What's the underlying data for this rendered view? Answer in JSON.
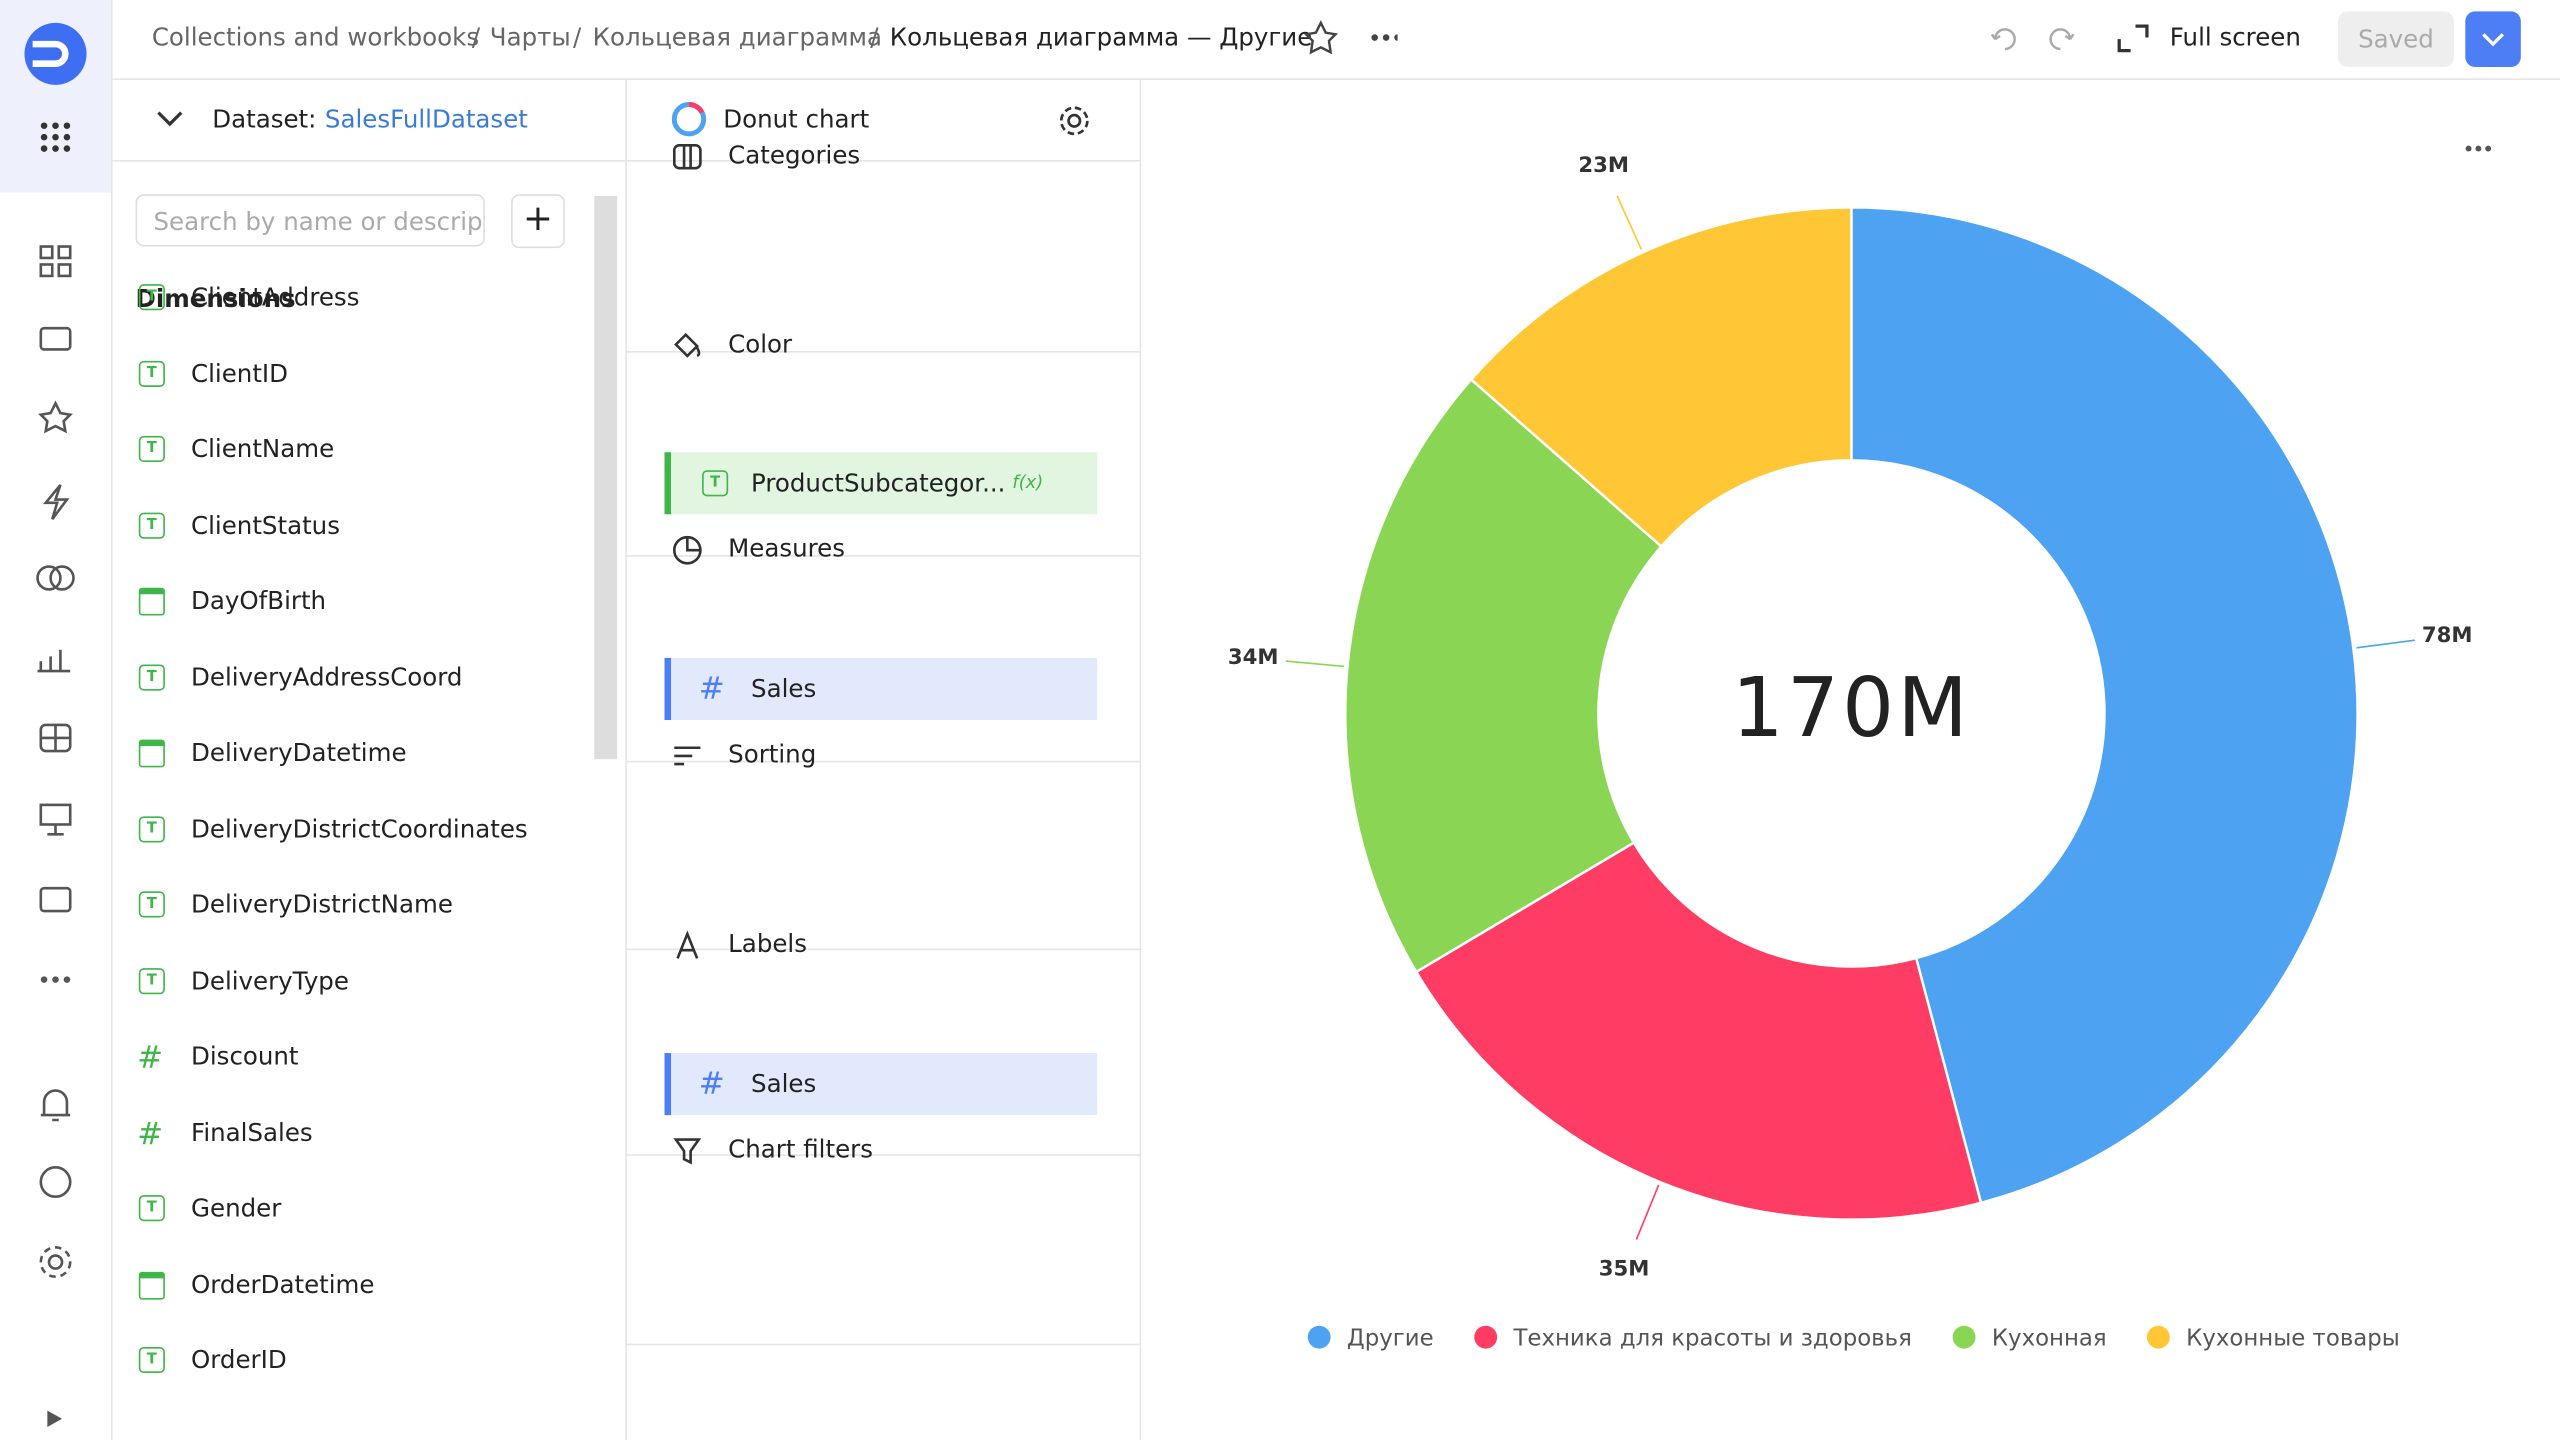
{
  "header": {
    "breadcrumbs": [
      "Collections and workbooks",
      "Чарты",
      "Кольцевая диаграмма",
      "Кольцевая диаграмма — Другие"
    ],
    "separator": "/",
    "full_screen": "Full screen",
    "saved": "Saved"
  },
  "dataset": {
    "label": "Dataset:",
    "name": "SalesFullDataset",
    "search": "Search by name or descript",
    "add": "+",
    "section": "Dimensions",
    "fields": [
      "ClientAddress",
      "ClientID",
      "ClientName",
      "ClientStatus",
      "DayOfBirth",
      "DeliveryAddressCoord",
      "DeliveryDatetime",
      "DeliveryDistrictCoordinates",
      "DeliveryDistrictName",
      "DeliveryType",
      "Discount",
      "FinalSales",
      "Gender",
      "OrderDatetime",
      "OrderID"
    ]
  },
  "wizard": {
    "chart_type": "Donut chart",
    "sections": [
      "Categories",
      "Color",
      "Measures",
      "Sorting",
      "Labels",
      "Chart filters"
    ],
    "color_item": "ProductSubcategor...",
    "color_item_badge": "f(x)",
    "measures_item": "Sales",
    "labels_item": "Sales"
  },
  "chart_data": {
    "type": "pie",
    "total_label": "170M",
    "categories": [
      "Другие",
      "Техника для красоты и здоровья",
      "Кухонная",
      "Кухонные товары"
    ],
    "values": [
      78000000,
      35000000,
      34000000,
      23000000
    ],
    "value_labels": [
      "78M",
      "35M",
      "34M",
      "23M"
    ],
    "colors": [
      "#4da2f1",
      "#ff3d64",
      "#8ad554",
      "#ffc636"
    ]
  }
}
